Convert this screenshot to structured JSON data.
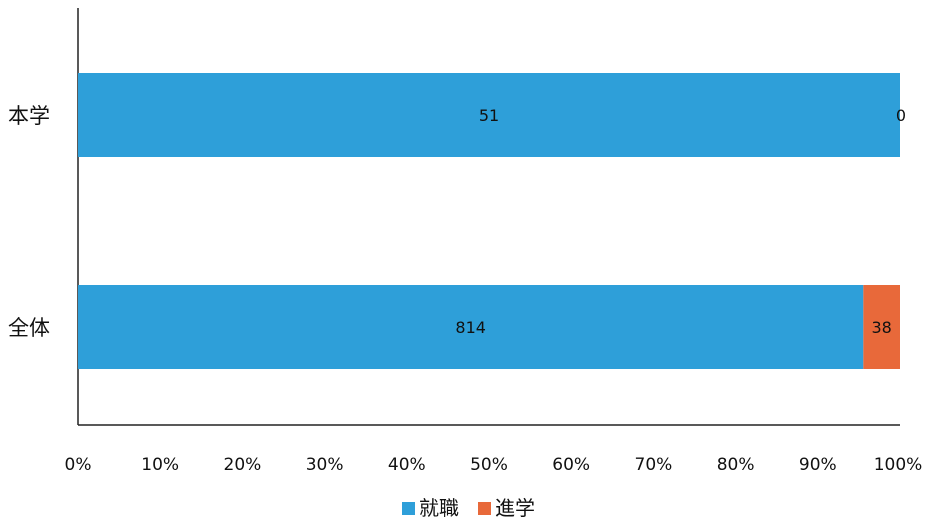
{
  "chart_data": {
    "type": "bar",
    "orientation": "horizontal",
    "stacking": "percent",
    "categories": [
      "本学",
      "全体"
    ],
    "series": [
      {
        "name": "就職",
        "values": [
          51,
          814
        ],
        "color": "#2e9fd9"
      },
      {
        "name": "進学",
        "values": [
          0,
          38
        ],
        "color": "#e8693a"
      }
    ],
    "data_labels": [
      [
        "51",
        "0"
      ],
      [
        "814",
        "38"
      ]
    ],
    "xlim": [
      0,
      100
    ],
    "x_ticks": [
      "0%",
      "10%",
      "20%",
      "30%",
      "40%",
      "50%",
      "60%",
      "70%",
      "80%",
      "90%",
      "100%"
    ],
    "legend": {
      "position": "bottom",
      "entries": [
        "就職",
        "進学"
      ]
    },
    "grid": false
  }
}
